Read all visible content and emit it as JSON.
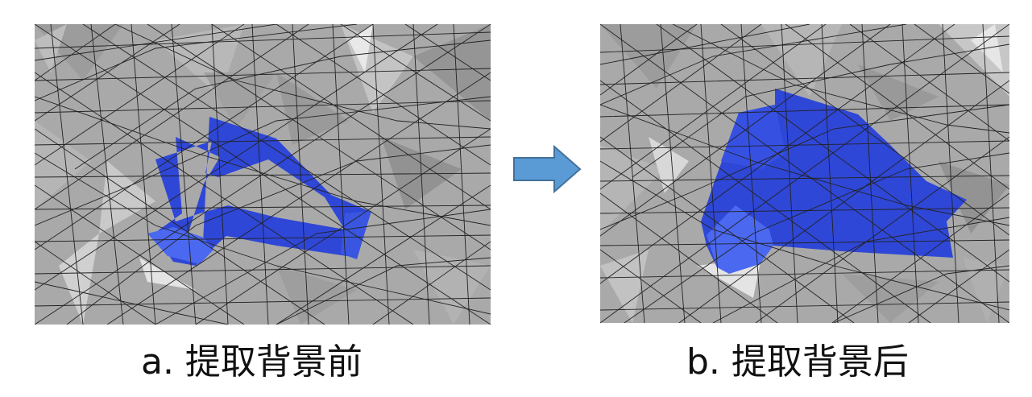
{
  "panels": [
    {
      "id": "a",
      "caption": "a.  提取背景前"
    },
    {
      "id": "b",
      "caption": "b.  提取背景后"
    }
  ],
  "colors": {
    "mesh_fill": "#a9a9a9",
    "mesh_line": "#222222",
    "highlight": "#2f47d6",
    "highlight_light": "#4b68f0",
    "arrow_fill": "#5b9bd5",
    "arrow_stroke": "#41719c"
  }
}
